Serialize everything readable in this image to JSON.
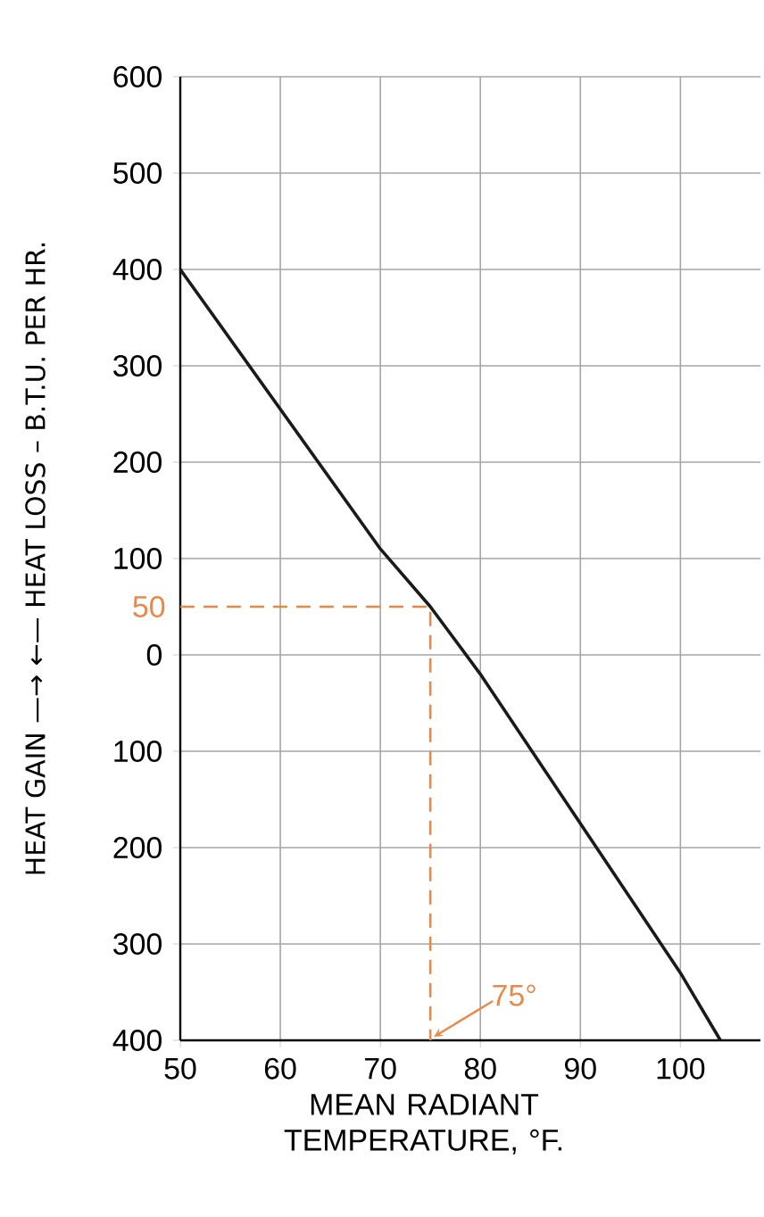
{
  "chart_data": {
    "type": "line",
    "xlabel": "MEAN RADIANT TEMPERATURE, °F.",
    "ylabel": "HEAT GAIN —→ ←— HEAT LOSS – B.T.U. PER HR.",
    "series": [
      {
        "color": "#1a1a1a",
        "x": [
          50,
          60,
          70,
          75,
          80,
          90,
          100,
          104
        ],
        "values": [
          400,
          255,
          110,
          50,
          -20,
          -175,
          -330,
          -400
        ]
      },
      {
        "color": "#e8894a",
        "line_style": "dashed",
        "x": [
          50,
          75,
          75
        ],
        "values": [
          50,
          50,
          -400
        ]
      }
    ],
    "annotations": [
      {
        "text": "50",
        "x": 50,
        "y": 50
      },
      {
        "text": "75°",
        "x": 75,
        "y": -400
      }
    ],
    "xlim": [
      50,
      108
    ],
    "ylim": [
      -400,
      600
    ],
    "xticks": [
      50,
      60,
      70,
      80,
      90,
      100
    ],
    "yticks": [
      {
        "value": -400,
        "label": "400"
      },
      {
        "value": -300,
        "label": "300"
      },
      {
        "value": -200,
        "label": "200"
      },
      {
        "value": -100,
        "label": "100"
      },
      0,
      100,
      200,
      300,
      400,
      500,
      600
    ],
    "grid": true,
    "marker": "none"
  }
}
